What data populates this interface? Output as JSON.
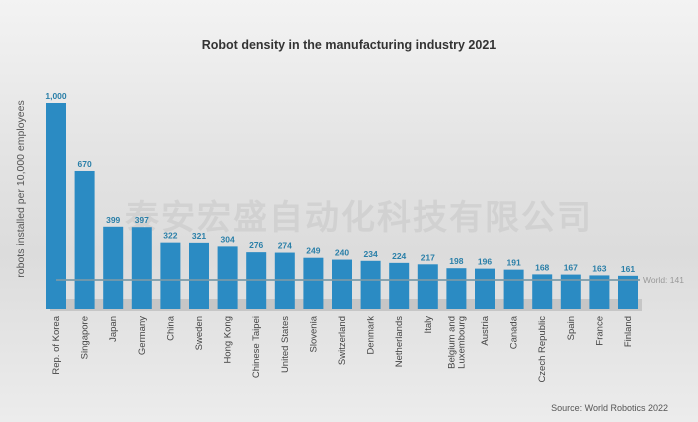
{
  "chart_data": {
    "type": "bar",
    "title": "Robot density in the manufacturing industry 2021",
    "ylabel": "robots installed per 10,000 employees",
    "xlabel": "",
    "ylim": [
      0,
      1000
    ],
    "grid": false,
    "bar_color": "#2b8bc3",
    "label_color": "#2a7fa8",
    "categories": [
      "Rep. of Korea",
      "Singapore",
      "Japan",
      "Germany",
      "China",
      "Sweden",
      "Hong Kong",
      "Chinese Taipei",
      "United States",
      "Slovenia",
      "Switzerland",
      "Denmark",
      "Netherlands",
      "Italy",
      "Belgium and\nLuxembourg",
      "Austria",
      "Canada",
      "Czech Republic",
      "Spain",
      "France",
      "Finland"
    ],
    "values": [
      1000,
      670,
      399,
      397,
      322,
      321,
      304,
      276,
      274,
      249,
      240,
      234,
      224,
      217,
      198,
      196,
      191,
      168,
      167,
      163,
      161
    ],
    "value_labels": [
      "1,000",
      "670",
      "399",
      "397",
      "322",
      "321",
      "304",
      "276",
      "274",
      "249",
      "240",
      "234",
      "224",
      "217",
      "198",
      "196",
      "191",
      "168",
      "167",
      "163",
      "161"
    ],
    "reference_line": {
      "label": "World: 141",
      "value": 141,
      "color": "#7a9aa8"
    },
    "source": "Source: World Robotics 2022"
  },
  "watermark": "泰安宏盛自动化科技有限公司"
}
